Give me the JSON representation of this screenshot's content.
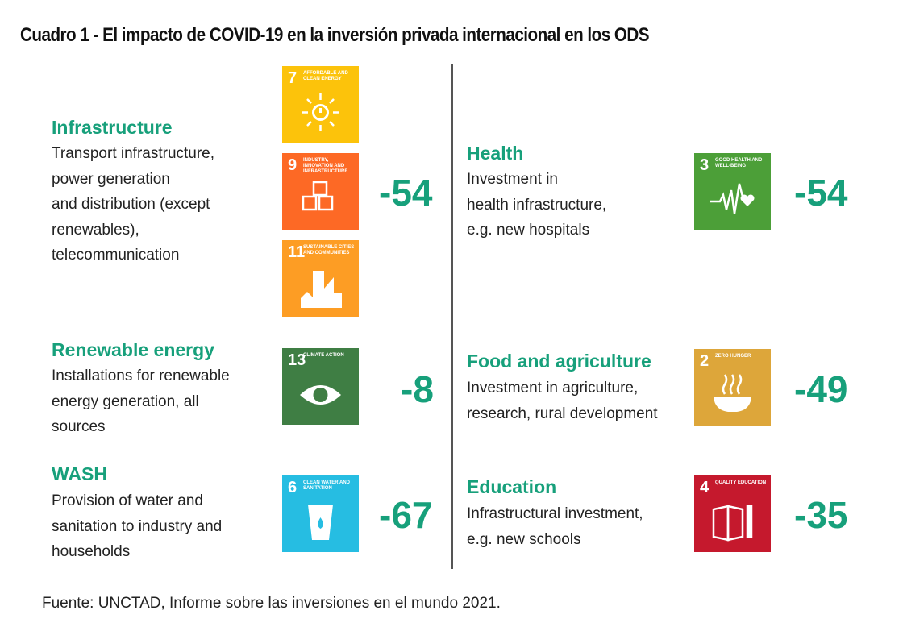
{
  "title": "Cuadro 1 - El impacto de COVID-19 en la inversión privada internacional en los ODS",
  "source": "Fuente: UNCTAD, Informe sobre las inversiones en el mundo 2021.",
  "left": [
    {
      "heading": "Infrastructure",
      "description": "Transport infrastructure,\npower generation\nand distribution (except\nrenewables),\ntelecommunication",
      "value": "-54"
    },
    {
      "heading": "Renewable energy",
      "description": "Installations for renewable\nenergy generation, all\nsources",
      "value": "-8"
    },
    {
      "heading": "WASH",
      "description": "Provision of water and\nsanitation to industry and\nhouseholds",
      "value": "-67"
    }
  ],
  "right": [
    {
      "heading": "Health",
      "description": "Investment in\nhealth infrastructure,\ne.g. new hospitals",
      "value": "-54"
    },
    {
      "heading": "Food and agriculture",
      "description": "Investment in agriculture,\nresearch, rural development",
      "value": "-49"
    },
    {
      "heading": "Education",
      "description": "Infrastructural investment,\ne.g. new schools",
      "value": "-35"
    }
  ],
  "sdg_icons": {
    "sdg7": {
      "number": "7",
      "label": "Affordable and clean energy",
      "color": "#FCC30B",
      "icon": "sun-power-icon"
    },
    "sdg9": {
      "number": "9",
      "label": "Industry, innovation and infrastructure",
      "color": "#FD6925",
      "icon": "cubes-icon"
    },
    "sdg11": {
      "number": "11",
      "label": "Sustainable cities and communities",
      "color": "#FD9D24",
      "icon": "city-icon"
    },
    "sdg13": {
      "number": "13",
      "label": "Climate action",
      "color": "#3F7E44",
      "icon": "eye-globe-icon"
    },
    "sdg6": {
      "number": "6",
      "label": "Clean water and sanitation",
      "color": "#26BDE2",
      "icon": "water-glass-icon"
    },
    "sdg3": {
      "number": "3",
      "label": "Good health and well-being",
      "color": "#4C9F38",
      "icon": "heartbeat-icon"
    },
    "sdg2": {
      "number": "2",
      "label": "Zero hunger",
      "color": "#DDA63A",
      "icon": "bowl-icon"
    },
    "sdg4": {
      "number": "4",
      "label": "Quality education",
      "color": "#C5192D",
      "icon": "book-pencil-icon"
    }
  },
  "accent_color": "#17a07b"
}
